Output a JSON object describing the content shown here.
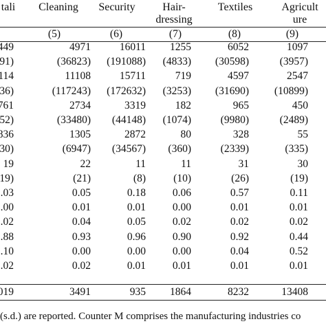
{
  "table": {
    "headers": [
      {
        "line1": "tali",
        "line2": ""
      },
      {
        "line1": "Cleaning",
        "line2": ""
      },
      {
        "line1": "Security",
        "line2": ""
      },
      {
        "line1": "Hair-",
        "line2": "dressing"
      },
      {
        "line1": "Textiles",
        "line2": ""
      },
      {
        "line1": "Agricult",
        "line2": "ure"
      }
    ],
    "col_numbers": [
      "",
      "(5)",
      "(6)",
      "(7)",
      "(8)",
      "(9)"
    ],
    "rows": [
      [
        "449",
        "4971",
        "16011",
        "1255",
        "6052",
        "1097"
      ],
      [
        "91)",
        "(36823)",
        "(191088)",
        "(4833)",
        "(30598)",
        "(3957)"
      ],
      [
        "114",
        "11108",
        "15711",
        "719",
        "4597",
        "2547"
      ],
      [
        "36)",
        "(117243)",
        "(172632)",
        "(3253)",
        "(31690)",
        "(10899)"
      ],
      [
        "761",
        "2734",
        "3319",
        "182",
        "965",
        "450"
      ],
      [
        "52)",
        "(33480)",
        "(44148)",
        "(1074)",
        "(9980)",
        "(2489)"
      ],
      [
        "836",
        "1305",
        "2872",
        "80",
        "328",
        "55"
      ],
      [
        "30)",
        "(6947)",
        "(34567)",
        "(360)",
        "(2339)",
        "(335)"
      ],
      [
        "19",
        "22",
        "11",
        "11",
        "31",
        "30"
      ],
      [
        "19)",
        "(21)",
        "(8)",
        "(10)",
        "(26)",
        "(19)"
      ],
      [
        ".03",
        "0.05",
        "0.18",
        "0.06",
        "0.57",
        "0.11"
      ],
      [
        ".00",
        "0.01",
        "0.01",
        "0.00",
        "0.01",
        "0.01"
      ],
      [
        ".02",
        "0.04",
        "0.05",
        "0.02",
        "0.02",
        "0.02"
      ],
      [
        ".88",
        "0.93",
        "0.96",
        "0.90",
        "0.92",
        "0.44"
      ],
      [
        ".10",
        "0.00",
        "0.00",
        "0.00",
        "0.04",
        "0.52"
      ],
      [
        ".02",
        "0.02",
        "0.01",
        "0.01",
        "0.01",
        "0.01"
      ]
    ],
    "total_row": [
      "019",
      "3491",
      "935",
      "1864",
      "8232",
      "13408"
    ]
  },
  "footnote": "(s.d.) are reported. Counter M comprises the manufacturing industries co"
}
